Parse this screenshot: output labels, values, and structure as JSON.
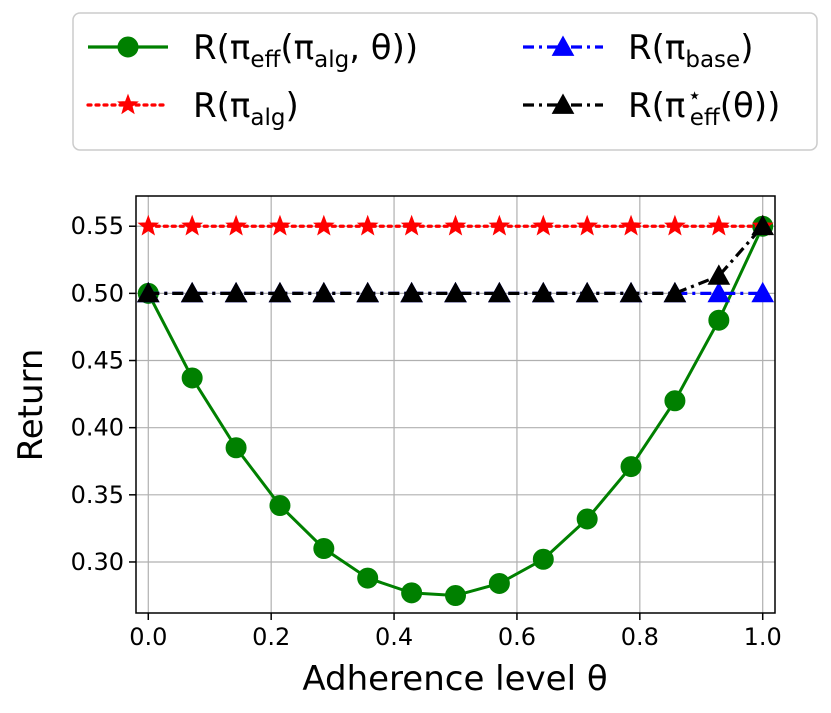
{
  "chart_data": {
    "type": "line",
    "xlabel": "Adherence level θ",
    "ylabel": "Return",
    "xlim": [
      -0.02,
      1.02
    ],
    "ylim": [
      0.262,
      0.5725
    ],
    "xticks": [
      "0.0",
      "0.2",
      "0.4",
      "0.6",
      "0.8",
      "1.0"
    ],
    "xtick_values": [
      0.0,
      0.2,
      0.4,
      0.6,
      0.8,
      1.0
    ],
    "yticks": [
      "0.30",
      "0.35",
      "0.40",
      "0.45",
      "0.50",
      "0.55"
    ],
    "ytick_values": [
      0.3,
      0.35,
      0.4,
      0.45,
      0.5,
      0.55
    ],
    "grid": true,
    "legend_position": "top, outside plot, 2 columns",
    "series": [
      {
        "name": "R(π_eff(π_alg, θ))",
        "color": "#008000",
        "linestyle": "solid",
        "marker": "circle",
        "x": [
          0.0,
          0.0714,
          0.1429,
          0.2143,
          0.2857,
          0.3571,
          0.4286,
          0.5,
          0.5714,
          0.6429,
          0.7143,
          0.7857,
          0.8571,
          0.9286,
          1.0
        ],
        "y": [
          0.5,
          0.437,
          0.385,
          0.342,
          0.31,
          0.288,
          0.277,
          0.275,
          0.284,
          0.302,
          0.332,
          0.371,
          0.42,
          0.48,
          0.55
        ]
      },
      {
        "name": "R(π_alg)",
        "color": "#ff0000",
        "linestyle": "dotted",
        "marker": "star",
        "x": [
          0.0,
          0.0714,
          0.1429,
          0.2143,
          0.2857,
          0.3571,
          0.4286,
          0.5,
          0.5714,
          0.6429,
          0.7143,
          0.7857,
          0.8571,
          0.9286,
          1.0
        ],
        "y": [
          0.55,
          0.55,
          0.55,
          0.55,
          0.55,
          0.55,
          0.55,
          0.55,
          0.55,
          0.55,
          0.55,
          0.55,
          0.55,
          0.55,
          0.55
        ]
      },
      {
        "name": "R(π_base)",
        "color": "#0000ff",
        "linestyle": "dashdot",
        "marker": "triangle",
        "x": [
          0.0,
          0.0714,
          0.1429,
          0.2143,
          0.2857,
          0.3571,
          0.4286,
          0.5,
          0.5714,
          0.6429,
          0.7143,
          0.7857,
          0.8571,
          0.9286,
          1.0
        ],
        "y": [
          0.5,
          0.5,
          0.5,
          0.5,
          0.5,
          0.5,
          0.5,
          0.5,
          0.5,
          0.5,
          0.5,
          0.5,
          0.5,
          0.5,
          0.5
        ]
      },
      {
        "name": "R(π*_eff(θ))",
        "color": "#000000",
        "linestyle": "dashdot",
        "marker": "triangle",
        "x": [
          0.0,
          0.0714,
          0.1429,
          0.2143,
          0.2857,
          0.3571,
          0.4286,
          0.5,
          0.5714,
          0.6429,
          0.7143,
          0.7857,
          0.8571,
          0.9286,
          1.0
        ],
        "y": [
          0.5,
          0.5,
          0.5,
          0.5,
          0.5,
          0.5,
          0.5,
          0.5,
          0.5,
          0.5,
          0.5,
          0.5,
          0.5,
          0.513,
          0.55
        ]
      }
    ],
    "legend": [
      {
        "series": 0,
        "text": "R(π",
        "sub": "eff",
        "text2": "(π",
        "sub2": "alg",
        "text3": ", θ))"
      },
      {
        "series": 2,
        "text": "R(π",
        "sub": "base",
        "text2": ")"
      },
      {
        "series": 1,
        "text": "R(π",
        "sub": "alg",
        "text2": ")"
      },
      {
        "series": 3,
        "text": "R(π",
        "sup": "⋆",
        "sub": "eff",
        "text2": "(θ))"
      }
    ]
  }
}
